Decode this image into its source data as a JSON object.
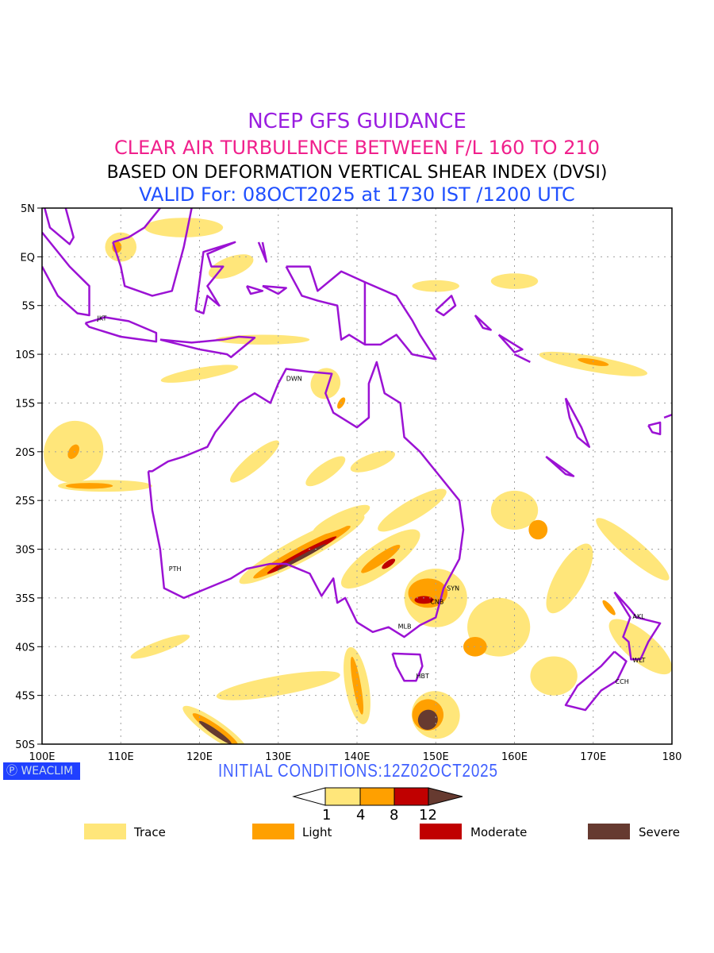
{
  "titles": {
    "line1": "NCEP GFS GUIDANCE",
    "line2": "CLEAR AIR TURBULENCE BETWEEN F/L 160 TO 210",
    "line3": "BASED ON DEFORMATION VERTICAL SHEAR INDEX (DVSI)",
    "line4": "VALID For: 08OCT2025 at 1730 IST /1200 UTC"
  },
  "axes": {
    "lat_labels": [
      "5N",
      "EQ",
      "5S",
      "10S",
      "15S",
      "20S",
      "25S",
      "30S",
      "35S",
      "40S",
      "45S",
      "50S"
    ],
    "lat_values": [
      5,
      0,
      -5,
      -10,
      -15,
      -20,
      -25,
      -30,
      -35,
      -40,
      -45,
      -50
    ],
    "lon_labels": [
      "100E",
      "110E",
      "120E",
      "130E",
      "140E",
      "150E",
      "160E",
      "170E",
      "180"
    ],
    "lon_values": [
      100,
      110,
      120,
      130,
      140,
      150,
      160,
      170,
      180
    ]
  },
  "cities": [
    {
      "name": "JKT",
      "lon": 106.8,
      "lat": -6.2
    },
    {
      "name": "DWN",
      "lon": 130.8,
      "lat": -12.4
    },
    {
      "name": "PTH",
      "lon": 115.9,
      "lat": -31.9
    },
    {
      "name": "SYN",
      "lon": 151.2,
      "lat": -33.9
    },
    {
      "name": "CNB",
      "lon": 149.1,
      "lat": -35.3
    },
    {
      "name": "MLB",
      "lon": 145,
      "lat": -37.8
    },
    {
      "name": "HBT",
      "lon": 147.3,
      "lat": -42.9
    },
    {
      "name": "AKL",
      "lon": 174.8,
      "lat": -36.8
    },
    {
      "name": "WLT",
      "lon": 174.8,
      "lat": -41.3
    },
    {
      "name": "CCH",
      "lon": 172.6,
      "lat": -43.5
    }
  ],
  "logo": "WEACLIM",
  "initial_conditions": "INITIAL CONDITIONS:12Z02OCT2025",
  "colorbar": {
    "ticks": [
      "1",
      "4",
      "8",
      "12"
    ]
  },
  "legend": [
    {
      "label": "Trace",
      "color": "#ffe67a"
    },
    {
      "label": "Light",
      "color": "#ffa000"
    },
    {
      "label": "Moderate",
      "color": "#c00000"
    },
    {
      "label": "Severe",
      "color": "#663a30"
    }
  ],
  "colors": {
    "coast": "#9b12d4",
    "grid": "#a0a0a0"
  }
}
